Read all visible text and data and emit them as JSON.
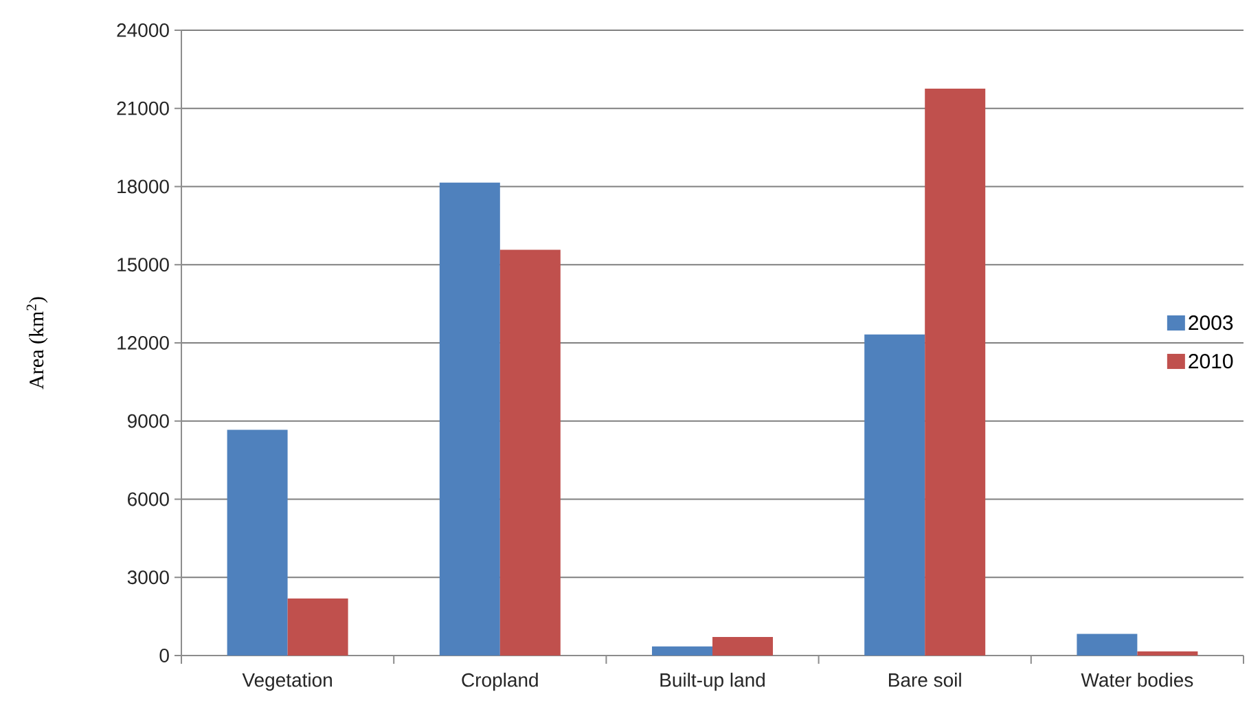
{
  "chart_data": {
    "type": "bar",
    "ylabel": "Area (km$^{2}$)",
    "categories": [
      "Vegetation",
      "Cropland",
      "Built-up land",
      "Bare soil",
      "Water bodies"
    ],
    "series": [
      {
        "name": "2003",
        "color": "#4f81bd",
        "values": [
          8660,
          18150,
          350,
          12320,
          830
        ]
      },
      {
        "name": "2010",
        "color": "#c0504d",
        "values": [
          2190,
          15570,
          710,
          21760,
          160
        ]
      }
    ],
    "ylim": [
      0,
      24000
    ],
    "yticks": [
      0,
      3000,
      6000,
      9000,
      12000,
      15000,
      18000,
      21000,
      24000
    ],
    "grid": "y",
    "legend": "right"
  }
}
